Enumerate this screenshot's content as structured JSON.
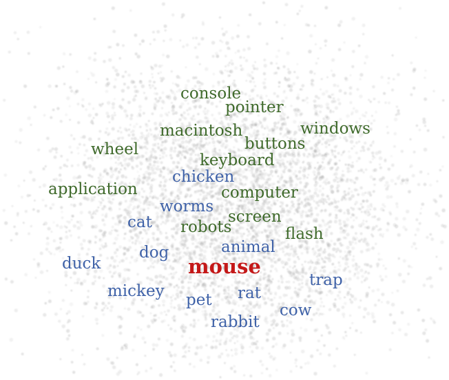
{
  "colors": {
    "computer_group": "#3f6a2b",
    "animal_group": "#3f62a8",
    "target": "#c41818",
    "dots": "#9a9a9a"
  },
  "target_word": "mouse",
  "computer_words": [
    "console",
    "pointer",
    "macintosh",
    "windows",
    "buttons",
    "wheel",
    "keyboard",
    "application",
    "computer",
    "robots",
    "screen",
    "flash"
  ],
  "animal_words": [
    "chicken",
    "worms",
    "cat",
    "animal",
    "dog",
    "duck",
    "trap",
    "mickey",
    "rat",
    "pet",
    "cow",
    "rabbit"
  ]
}
